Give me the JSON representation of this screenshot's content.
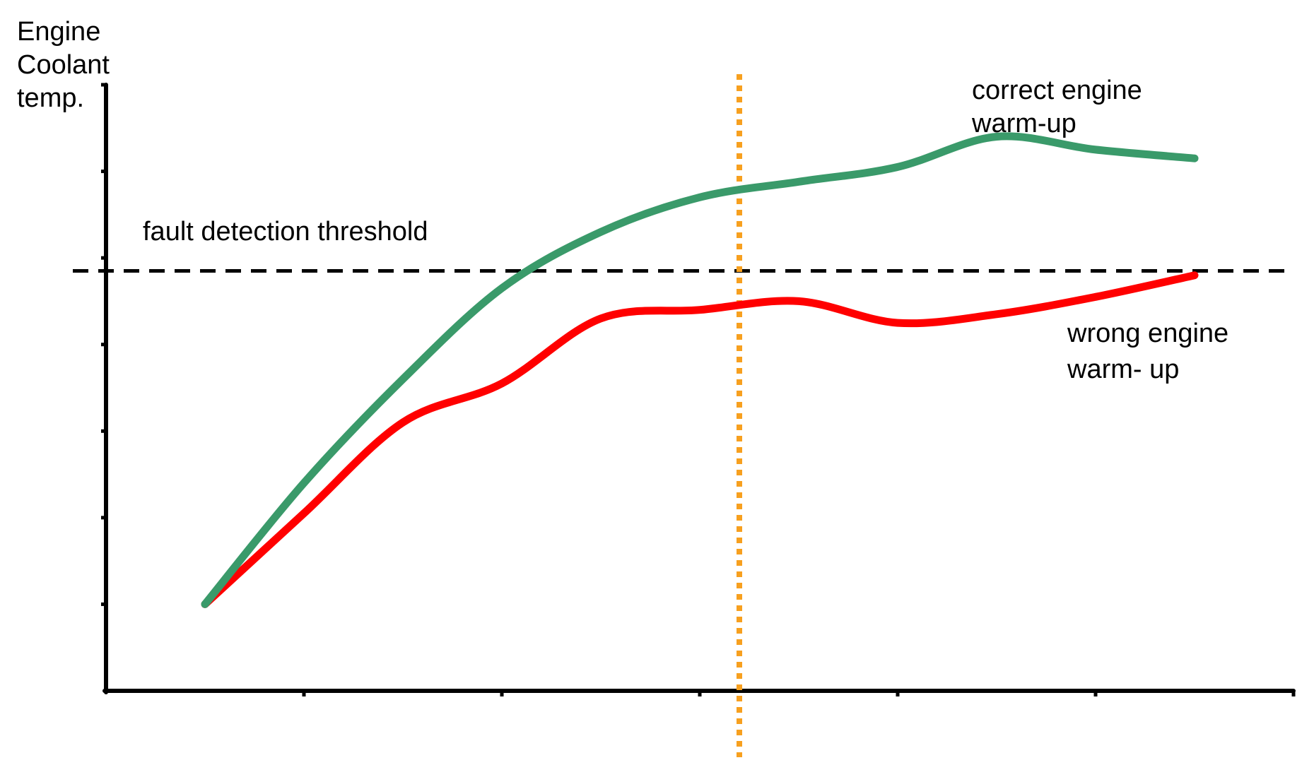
{
  "chart_data": {
    "type": "line",
    "title": "",
    "ylabel": "Engine Coolant temp.",
    "xlabel": "",
    "xlim": [
      0,
      6
    ],
    "ylim": [
      0,
      7
    ],
    "grid": false,
    "colors": {
      "correct": "#3a9a6a",
      "wrong": "#ff0000",
      "threshold": "#000000",
      "marker": "#f7a01f",
      "axis": "#000000"
    },
    "series": [
      {
        "name": "correct engine warm-up",
        "x": [
          0.5,
          1.0,
          1.5,
          2.0,
          2.5,
          3.0,
          3.5,
          4.0,
          4.5,
          5.0,
          5.5
        ],
        "y": [
          1.0,
          2.4,
          3.6,
          4.65,
          5.3,
          5.7,
          5.88,
          6.05,
          6.4,
          6.25,
          6.15
        ]
      },
      {
        "name": "wrong engine warm-up",
        "x": [
          0.5,
          1.0,
          1.5,
          2.0,
          2.5,
          3.0,
          3.5,
          4.0,
          4.5,
          5.0,
          5.5
        ],
        "y": [
          1.0,
          2.05,
          3.1,
          3.55,
          4.3,
          4.4,
          4.5,
          4.25,
          4.35,
          4.55,
          4.8
        ]
      }
    ],
    "threshold": {
      "label": "fault detection threshold",
      "y": 4.85
    },
    "marker_x": 3.2,
    "annotations": {
      "correct_line1": "correct engine",
      "correct_line2": "warm-up",
      "wrong_line1": "wrong engine",
      "wrong_line2": "warm- up"
    },
    "ylabel_lines": [
      "Engine",
      "Coolant",
      "temp."
    ]
  }
}
